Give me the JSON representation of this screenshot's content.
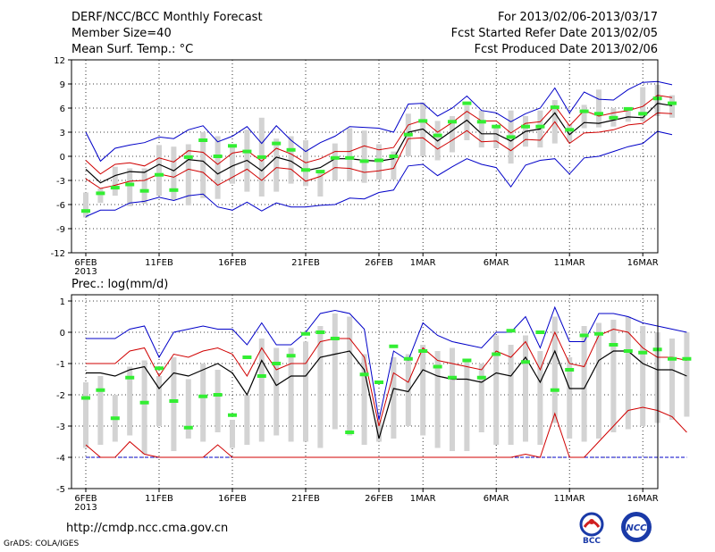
{
  "header": {
    "title": "DERF/NCC/BCC Monthly Forecast",
    "member_size": "Member Size=40",
    "variable": "Mean Surf. Temp.: °C",
    "forecast_range": "For 2013/02/06-2013/03/17",
    "started": "Fcst Started Refer Date 2013/02/05",
    "produced": "Fcst Produced Date 2013/02/06"
  },
  "footer": {
    "url": "http://cmdp.ncc.cma.gov.cn",
    "grads": "GrADS: COLA/IGES",
    "logo_bcc": "BCC",
    "logo_ncc": "NCC"
  },
  "colors": {
    "max": "#0000c8",
    "min": "#0000c8",
    "upper": "#d00000",
    "lower": "#d00000",
    "mean": "#000000",
    "median": "#33ee33",
    "box": "#d3d3d3",
    "grid": "#000000"
  },
  "chart_data": [
    {
      "type": "line",
      "title": "Mean Surf. Temp.: °C",
      "ylim": [
        -12,
        12
      ],
      "yticks": [
        12,
        9,
        6,
        3,
        0,
        -3,
        -6,
        -9,
        -12
      ],
      "x_ticks": [
        {
          "day": 0,
          "label": "6FEB",
          "sub": "2013"
        },
        {
          "day": 5,
          "label": "11FEB",
          "sub": ""
        },
        {
          "day": 10,
          "label": "16FEB",
          "sub": ""
        },
        {
          "day": 15,
          "label": "21FEB",
          "sub": ""
        },
        {
          "day": 20,
          "label": "26FEB",
          "sub": ""
        },
        {
          "day": 23,
          "label": "1MAR",
          "sub": ""
        },
        {
          "day": 28,
          "label": "6MAR",
          "sub": ""
        },
        {
          "day": 33,
          "label": "11MAR",
          "sub": ""
        },
        {
          "day": 38,
          "label": "16MAR",
          "sub": ""
        }
      ],
      "series": [
        {
          "name": "max",
          "values": [
            3.0,
            -0.6,
            1.0,
            1.4,
            1.7,
            2.4,
            2.2,
            3.3,
            3.8,
            1.8,
            2.5,
            3.7,
            1.6,
            3.8,
            2.0,
            0.6,
            1.7,
            2.5,
            3.7,
            3.6,
            3.5,
            3.0,
            6.5,
            6.6,
            5.0,
            6.0,
            7.5,
            5.7,
            5.4,
            4.3,
            5.3,
            6.0,
            8.5,
            5.4,
            8.0,
            7.1,
            7.0,
            8.3,
            9.2,
            9.3,
            8.9
          ]
        },
        {
          "name": "upper",
          "values": [
            -0.5,
            -2.2,
            -1.0,
            -0.8,
            -1.2,
            -0.2,
            -0.7,
            0.7,
            0.5,
            -1.0,
            0.4,
            0.7,
            -0.6,
            1.0,
            0.3,
            -0.8,
            -0.3,
            0.6,
            0.6,
            1.3,
            0.8,
            1.1,
            3.9,
            4.5,
            3.0,
            4.2,
            5.6,
            4.4,
            4.4,
            2.9,
            4.1,
            4.3,
            6.3,
            3.8,
            5.7,
            5.0,
            5.4,
            5.7,
            6.2,
            7.6,
            7.3
          ]
        },
        {
          "name": "mean",
          "values": [
            -1.6,
            -3.3,
            -2.4,
            -1.9,
            -2.0,
            -1.0,
            -1.8,
            -0.4,
            -0.6,
            -2.2,
            -1.2,
            -0.5,
            -1.8,
            -0.1,
            -0.6,
            -1.8,
            -1.4,
            -0.3,
            -0.3,
            -0.5,
            -0.6,
            -0.3,
            3.0,
            3.4,
            1.9,
            3.2,
            4.5,
            2.8,
            2.8,
            1.9,
            3.1,
            3.4,
            5.4,
            2.7,
            4.2,
            4.1,
            4.5,
            4.9,
            4.8,
            6.6,
            6.3
          ]
        },
        {
          "name": "lower",
          "values": [
            -2.8,
            -4.0,
            -3.6,
            -3.1,
            -3.0,
            -2.2,
            -2.6,
            -1.6,
            -2.0,
            -3.6,
            -2.6,
            -1.6,
            -3.0,
            -1.4,
            -1.6,
            -3.1,
            -2.5,
            -1.4,
            -1.5,
            -2.0,
            -1.8,
            -1.5,
            2.2,
            2.3,
            0.9,
            2.0,
            3.2,
            1.8,
            1.9,
            0.7,
            2.1,
            2.0,
            4.3,
            1.6,
            2.9,
            3.0,
            3.3,
            3.9,
            4.1,
            5.4,
            5.3
          ]
        },
        {
          "name": "min",
          "values": [
            -7.5,
            -6.7,
            -6.7,
            -5.8,
            -5.6,
            -5.1,
            -5.5,
            -4.9,
            -4.7,
            -6.3,
            -6.7,
            -5.7,
            -6.8,
            -5.8,
            -6.3,
            -6.3,
            -6.1,
            -6.0,
            -5.2,
            -5.3,
            -4.5,
            -4.2,
            -1.2,
            -1.0,
            -2.4,
            -1.3,
            -0.3,
            -1.0,
            -1.4,
            -3.8,
            -1.1,
            -0.5,
            -0.3,
            -2.2,
            -0.2,
            0.0,
            0.6,
            1.2,
            1.6,
            3.1,
            2.7
          ]
        },
        {
          "name": "box_high",
          "values": [
            -4.5,
            -4.0,
            -1.3,
            -1.5,
            -1.5,
            1.4,
            1.2,
            1.5,
            3.0,
            2.5,
            1.5,
            3.3,
            4.8,
            2.2,
            2.5,
            2.0,
            -2.0,
            1.6,
            3.5,
            3.2,
            1.5,
            0.6,
            5.3,
            6.7,
            4.4,
            5.0,
            6.3,
            5.7,
            3.8,
            5.7,
            5.0,
            5.7,
            7.0,
            4.0,
            6.4,
            8.3,
            6.0,
            6.0,
            8.6,
            8.9,
            7.6
          ]
        },
        {
          "name": "box_low",
          "values": [
            -7.6,
            -5.8,
            -4.9,
            -6.2,
            -5.9,
            -4.9,
            -5.4,
            -6.1,
            -5.2,
            -5.3,
            -3.4,
            -4.4,
            -5.0,
            -4.4,
            -3.4,
            -3.7,
            -5.0,
            -3.0,
            -3.1,
            -3.3,
            -2.9,
            -2.9,
            0.0,
            0.0,
            -0.5,
            0.5,
            2.0,
            1.1,
            1.0,
            -0.9,
            1.2,
            1.1,
            1.6,
            1.8,
            3.5,
            3.6,
            3.7,
            4.3,
            4.4,
            5.0,
            4.8
          ]
        },
        {
          "name": "median",
          "values": [
            -6.8,
            -4.6,
            -3.9,
            -3.5,
            -4.3,
            -2.3,
            -4.2,
            -0.1,
            2.0,
            0.0,
            1.3,
            0.6,
            -0.1,
            1.6,
            0.8,
            -1.7,
            -1.9,
            -0.2,
            -0.2,
            -0.6,
            -0.5,
            0.0,
            2.7,
            4.4,
            2.6,
            4.3,
            6.6,
            4.3,
            3.7,
            2.4,
            3.7,
            3.7,
            6.1,
            3.3,
            5.6,
            5.3,
            4.8,
            5.9,
            5.3,
            7.2,
            6.6
          ]
        }
      ]
    },
    {
      "type": "line",
      "title": "Prec.: log(mm/d)",
      "ylim": [
        -5,
        1.2
      ],
      "yticks": [
        1,
        0,
        -1,
        -2,
        -3,
        -4,
        -5
      ],
      "x_ticks": [
        {
          "day": 0,
          "label": "6FEB",
          "sub": "2013"
        },
        {
          "day": 5,
          "label": "11FEB",
          "sub": ""
        },
        {
          "day": 10,
          "label": "16FEB",
          "sub": ""
        },
        {
          "day": 15,
          "label": "21FEB",
          "sub": ""
        },
        {
          "day": 20,
          "label": "26FEB",
          "sub": ""
        },
        {
          "day": 23,
          "label": "1MAR",
          "sub": ""
        },
        {
          "day": 28,
          "label": "6MAR",
          "sub": ""
        },
        {
          "day": 33,
          "label": "11MAR",
          "sub": ""
        },
        {
          "day": 38,
          "label": "16MAR",
          "sub": ""
        }
      ],
      "series": [
        {
          "name": "max",
          "values": [
            -0.2,
            -0.2,
            -0.2,
            0.1,
            0.2,
            -0.8,
            0.0,
            0.1,
            0.2,
            0.1,
            0.1,
            -0.4,
            0.3,
            -0.4,
            -0.4,
            0.0,
            0.6,
            0.7,
            0.6,
            0.1,
            -2.8,
            -0.6,
            -0.9,
            0.3,
            -0.1,
            -0.3,
            -0.4,
            -0.5,
            0.0,
            0.0,
            0.5,
            -0.5,
            0.8,
            -0.3,
            -0.3,
            0.6,
            0.6,
            0.5,
            0.3,
            0.2,
            0.1,
            0.0
          ]
        },
        {
          "name": "upper",
          "values": [
            -1.0,
            -1.0,
            -1.0,
            -0.6,
            -0.5,
            -1.4,
            -0.7,
            -0.8,
            -0.6,
            -0.5,
            -0.7,
            -1.4,
            -0.5,
            -1.2,
            -1.0,
            -1.0,
            -0.3,
            -0.2,
            -0.2,
            -0.8,
            -3.0,
            -1.3,
            -1.6,
            -0.5,
            -0.9,
            -1.0,
            -1.1,
            -1.2,
            -0.6,
            -0.8,
            -0.3,
            -1.2,
            0.0,
            -1.0,
            -1.1,
            -0.1,
            0.1,
            0.0,
            -0.5,
            -0.8,
            -0.8,
            -0.9
          ]
        },
        {
          "name": "mean",
          "values": [
            -1.3,
            -1.3,
            -1.4,
            -1.2,
            -1.1,
            -1.8,
            -1.3,
            -1.4,
            -1.2,
            -1.0,
            -1.3,
            -2.0,
            -0.9,
            -1.7,
            -1.4,
            -1.4,
            -0.8,
            -0.7,
            -0.6,
            -1.2,
            -3.4,
            -1.8,
            -1.9,
            -1.2,
            -1.4,
            -1.5,
            -1.5,
            -1.6,
            -1.3,
            -1.4,
            -0.8,
            -1.6,
            -0.6,
            -1.8,
            -1.8,
            -0.9,
            -0.6,
            -0.6,
            -1.0,
            -1.2,
            -1.2,
            -1.4
          ]
        },
        {
          "name": "lower",
          "values": [
            -3.6,
            -4.0,
            -4.0,
            -3.5,
            -3.9,
            -4.0,
            -4.0,
            -4.0,
            -4.0,
            -3.6,
            -4.0,
            -4.0,
            -4.0,
            -4.0,
            -4.0,
            -4.0,
            -4.0,
            -4.0,
            -4.0,
            -4.0,
            -4.0,
            -4.0,
            -4.0,
            -4.0,
            -4.0,
            -4.0,
            -4.0,
            -4.0,
            -4.0,
            -4.0,
            -3.9,
            -4.0,
            -2.6,
            -4.0,
            -4.0,
            -3.5,
            -3.0,
            -2.5,
            -2.4,
            -2.5,
            -2.7,
            -3.2
          ]
        },
        {
          "name": "min",
          "values": [
            -4.0,
            -4.0,
            -4.0,
            -4.0,
            -4.0,
            -4.0,
            -4.0,
            -4.0,
            -4.0,
            -4.0,
            -4.0,
            -4.0,
            -4.0,
            -4.0,
            -4.0,
            -4.0,
            -4.0,
            -4.0,
            -4.0,
            -4.0,
            -4.0,
            -4.0,
            -4.0,
            -4.0,
            -4.0,
            -4.0,
            -4.0,
            -4.0,
            -4.0,
            -4.0,
            -4.0,
            -4.0,
            -4.0,
            -4.0,
            -4.0,
            -4.0,
            -4.0,
            -4.0,
            -4.0,
            -4.0,
            -4.0,
            -4.0
          ]
        },
        {
          "name": "box_high",
          "values": [
            -1.6,
            -1.4,
            -2.0,
            -1.1,
            -0.9,
            -1.4,
            -0.8,
            -1.5,
            -1.0,
            -1.2,
            -2.8,
            -2.0,
            -0.2,
            -0.5,
            -0.5,
            -0.3,
            0.2,
            0.6,
            0.5,
            -0.7,
            -2.8,
            -0.8,
            -0.7,
            -0.4,
            -0.6,
            -0.5,
            -0.9,
            -1.0,
            -0.1,
            -0.4,
            -0.1,
            -0.6,
            0.5,
            -0.8,
            0.2,
            0.3,
            0.4,
            0.5,
            0.2,
            0.0,
            -0.2,
            0.0
          ]
        },
        {
          "name": "box_low",
          "values": [
            -3.7,
            -3.6,
            -3.5,
            -3.3,
            -3.9,
            -3.0,
            -3.8,
            -3.4,
            -3.5,
            -3.2,
            -3.7,
            -3.6,
            -3.5,
            -3.3,
            -3.5,
            -3.5,
            -3.7,
            -3.1,
            -3.3,
            -3.6,
            -3.5,
            -3.4,
            -3.0,
            -3.3,
            -3.7,
            -3.8,
            -3.8,
            -3.2,
            -3.6,
            -3.6,
            -3.5,
            -3.6,
            -2.9,
            -3.4,
            -3.5,
            -3.4,
            -3.2,
            -3.1,
            -3.0,
            -2.9,
            -2.8,
            -2.7
          ]
        },
        {
          "name": "median",
          "values": [
            -2.1,
            -1.85,
            -2.75,
            -1.45,
            -2.25,
            -1.15,
            -2.2,
            -3.05,
            -2.05,
            -2.0,
            -2.65,
            -0.8,
            -1.4,
            -1.0,
            -0.75,
            -0.05,
            0.0,
            -0.2,
            -3.2,
            -1.35,
            -1.6,
            -0.45,
            -0.85,
            -0.6,
            -1.1,
            -1.45,
            -0.9,
            -1.45,
            -0.7,
            0.05,
            -0.95,
            0.0,
            -1.85,
            -1.2,
            -0.1,
            -0.05,
            -0.4,
            -0.6,
            -0.65,
            -0.55,
            -0.85,
            -0.85
          ]
        }
      ]
    }
  ]
}
